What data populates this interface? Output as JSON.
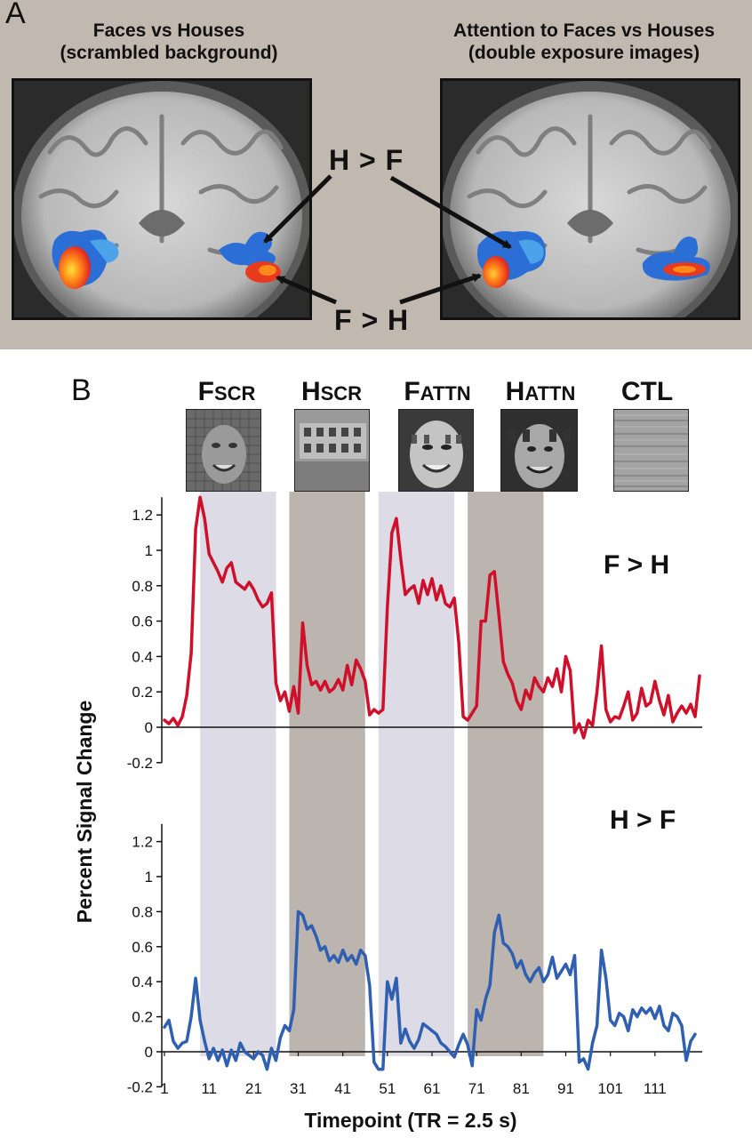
{
  "panel_a": {
    "letter": "A",
    "left_title_line1": "Faces vs Houses",
    "left_title_line2": "(scrambled background)",
    "right_title_line1": "Attention to Faces vs Houses",
    "right_title_line2": "(double exposure images)",
    "callout_top": "H > F",
    "callout_bottom": "F > H"
  },
  "panel_b": {
    "letter": "B",
    "conditions": [
      {
        "big": "F",
        "small": "SCR",
        "thumb": "face"
      },
      {
        "big": "H",
        "small": "SCR",
        "thumb": "house"
      },
      {
        "big": "F",
        "small": "ATTN",
        "thumb": "face-attn"
      },
      {
        "big": "H",
        "small": "ATTN",
        "thumb": "house-attn"
      },
      {
        "big": "CTL",
        "small": "",
        "thumb": "noise"
      }
    ]
  },
  "colors": {
    "f_gt_h": "#d0102a",
    "h_gt_f": "#2f5fb0",
    "face_block": "#dddbe6",
    "house_block": "#bcb4ae"
  },
  "chart_data": {
    "type": "line",
    "xlabel": "Timepoint (TR = 2.5 s)",
    "ylabel": "Percent Signal Change",
    "x_ticks": [
      1,
      11,
      21,
      31,
      41,
      51,
      61,
      71,
      81,
      91,
      101,
      111
    ],
    "x_range": [
      1,
      120
    ],
    "y_ticks": [
      -0.2,
      0,
      0.2,
      0.4,
      0.6,
      0.8,
      1,
      1.2
    ],
    "ylim": [
      -0.2,
      1.3
    ],
    "blocks": [
      {
        "start": 9,
        "end": 26,
        "kind": "face"
      },
      {
        "start": 29,
        "end": 46,
        "kind": "house"
      },
      {
        "start": 49,
        "end": 66,
        "kind": "face"
      },
      {
        "start": 69,
        "end": 86,
        "kind": "house"
      }
    ],
    "series": [
      {
        "name": "F > H",
        "values": [
          0.04,
          0.02,
          0.05,
          0.01,
          0.06,
          0.18,
          0.42,
          1.12,
          1.3,
          1.18,
          0.98,
          0.93,
          0.88,
          0.82,
          0.9,
          0.93,
          0.82,
          0.8,
          0.78,
          0.82,
          0.78,
          0.72,
          0.68,
          0.7,
          0.76,
          0.25,
          0.15,
          0.2,
          0.09,
          0.23,
          0.08,
          0.59,
          0.35,
          0.24,
          0.26,
          0.21,
          0.26,
          0.2,
          0.22,
          0.27,
          0.21,
          0.35,
          0.24,
          0.38,
          0.33,
          0.26,
          0.07,
          0.1,
          0.08,
          0.1,
          0.68,
          1.1,
          1.18,
          0.95,
          0.75,
          0.78,
          0.8,
          0.7,
          0.83,
          0.75,
          0.84,
          0.72,
          0.8,
          0.7,
          0.68,
          0.73,
          0.48,
          0.06,
          0.04,
          0.08,
          0.12,
          0.6,
          0.6,
          0.86,
          0.88,
          0.63,
          0.37,
          0.3,
          0.25,
          0.15,
          0.1,
          0.21,
          0.16,
          0.28,
          0.23,
          0.2,
          0.28,
          0.23,
          0.33,
          0.2,
          0.4,
          0.32,
          -0.03,
          0.02,
          -0.06,
          0.04,
          0.01,
          0.2,
          0.46,
          0.1,
          0.03,
          0.06,
          0.05,
          0.12,
          0.2,
          0.04,
          0.08,
          0.22,
          0.12,
          0.14,
          0.26,
          0.15,
          0.07,
          0.18,
          0.03,
          0.08,
          0.12,
          0.08,
          0.13,
          0.06,
          0.29
        ],
        "x_start": 1
      },
      {
        "name": "H > F",
        "values": [
          0.14,
          0.18,
          0.06,
          0.02,
          0.05,
          0.06,
          0.2,
          0.42,
          0.18,
          0.06,
          -0.04,
          0.02,
          -0.05,
          0.01,
          -0.08,
          0.01,
          -0.05,
          0.05,
          0.0,
          -0.02,
          -0.04,
          0.0,
          -0.02,
          -0.1,
          0.02,
          -0.05,
          0.08,
          0.15,
          0.12,
          0.24,
          0.8,
          0.78,
          0.7,
          0.72,
          0.66,
          0.58,
          0.6,
          0.52,
          0.55,
          0.51,
          0.58,
          0.52,
          0.55,
          0.5,
          0.58,
          0.55,
          0.38,
          -0.06,
          -0.1,
          -0.1,
          0.4,
          0.3,
          0.42,
          0.05,
          0.13,
          0.06,
          0.02,
          0.07,
          0.16,
          0.14,
          0.12,
          0.1,
          0.05,
          0.03,
          0.0,
          -0.03,
          0.04,
          0.1,
          0.04,
          -0.08,
          0.24,
          0.18,
          0.3,
          0.38,
          0.68,
          0.78,
          0.62,
          0.6,
          0.56,
          0.48,
          0.52,
          0.44,
          0.4,
          0.45,
          0.48,
          0.4,
          0.44,
          0.54,
          0.42,
          0.46,
          0.5,
          0.44,
          0.55,
          -0.06,
          -0.04,
          -0.1,
          0.05,
          0.15,
          0.58,
          0.42,
          0.18,
          0.15,
          0.22,
          0.2,
          0.12,
          0.24,
          0.2,
          0.25,
          0.22,
          0.25,
          0.19,
          0.26,
          0.15,
          0.12,
          0.22,
          0.2,
          0.15,
          -0.05,
          0.06,
          0.1
        ],
        "x_start": 1
      }
    ]
  }
}
